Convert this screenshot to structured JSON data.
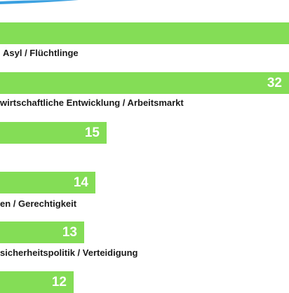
{
  "colors": {
    "bar": "#84dd56",
    "bar_text": "#ffffff",
    "label_text": "#1a1a1a",
    "accent_arc": "#3aa0e0"
  },
  "chart_data": {
    "type": "bar",
    "orientation": "horizontal",
    "categories": [
      "",
      "Asyl / Flüchtlinge",
      "wirtschaftliche Entwicklung / Arbeitsmarkt",
      "",
      "en / Gerechtigkeit",
      "sicherheitspolitik / Verteidigung",
      ""
    ],
    "values": [
      null,
      null,
      32,
      15,
      14,
      13,
      12
    ],
    "value_labels": [
      "",
      "",
      "32",
      "15",
      "14",
      "13",
      "12"
    ],
    "title": "",
    "xlabel": "",
    "ylabel": "",
    "grid": false,
    "legend": "none"
  }
}
